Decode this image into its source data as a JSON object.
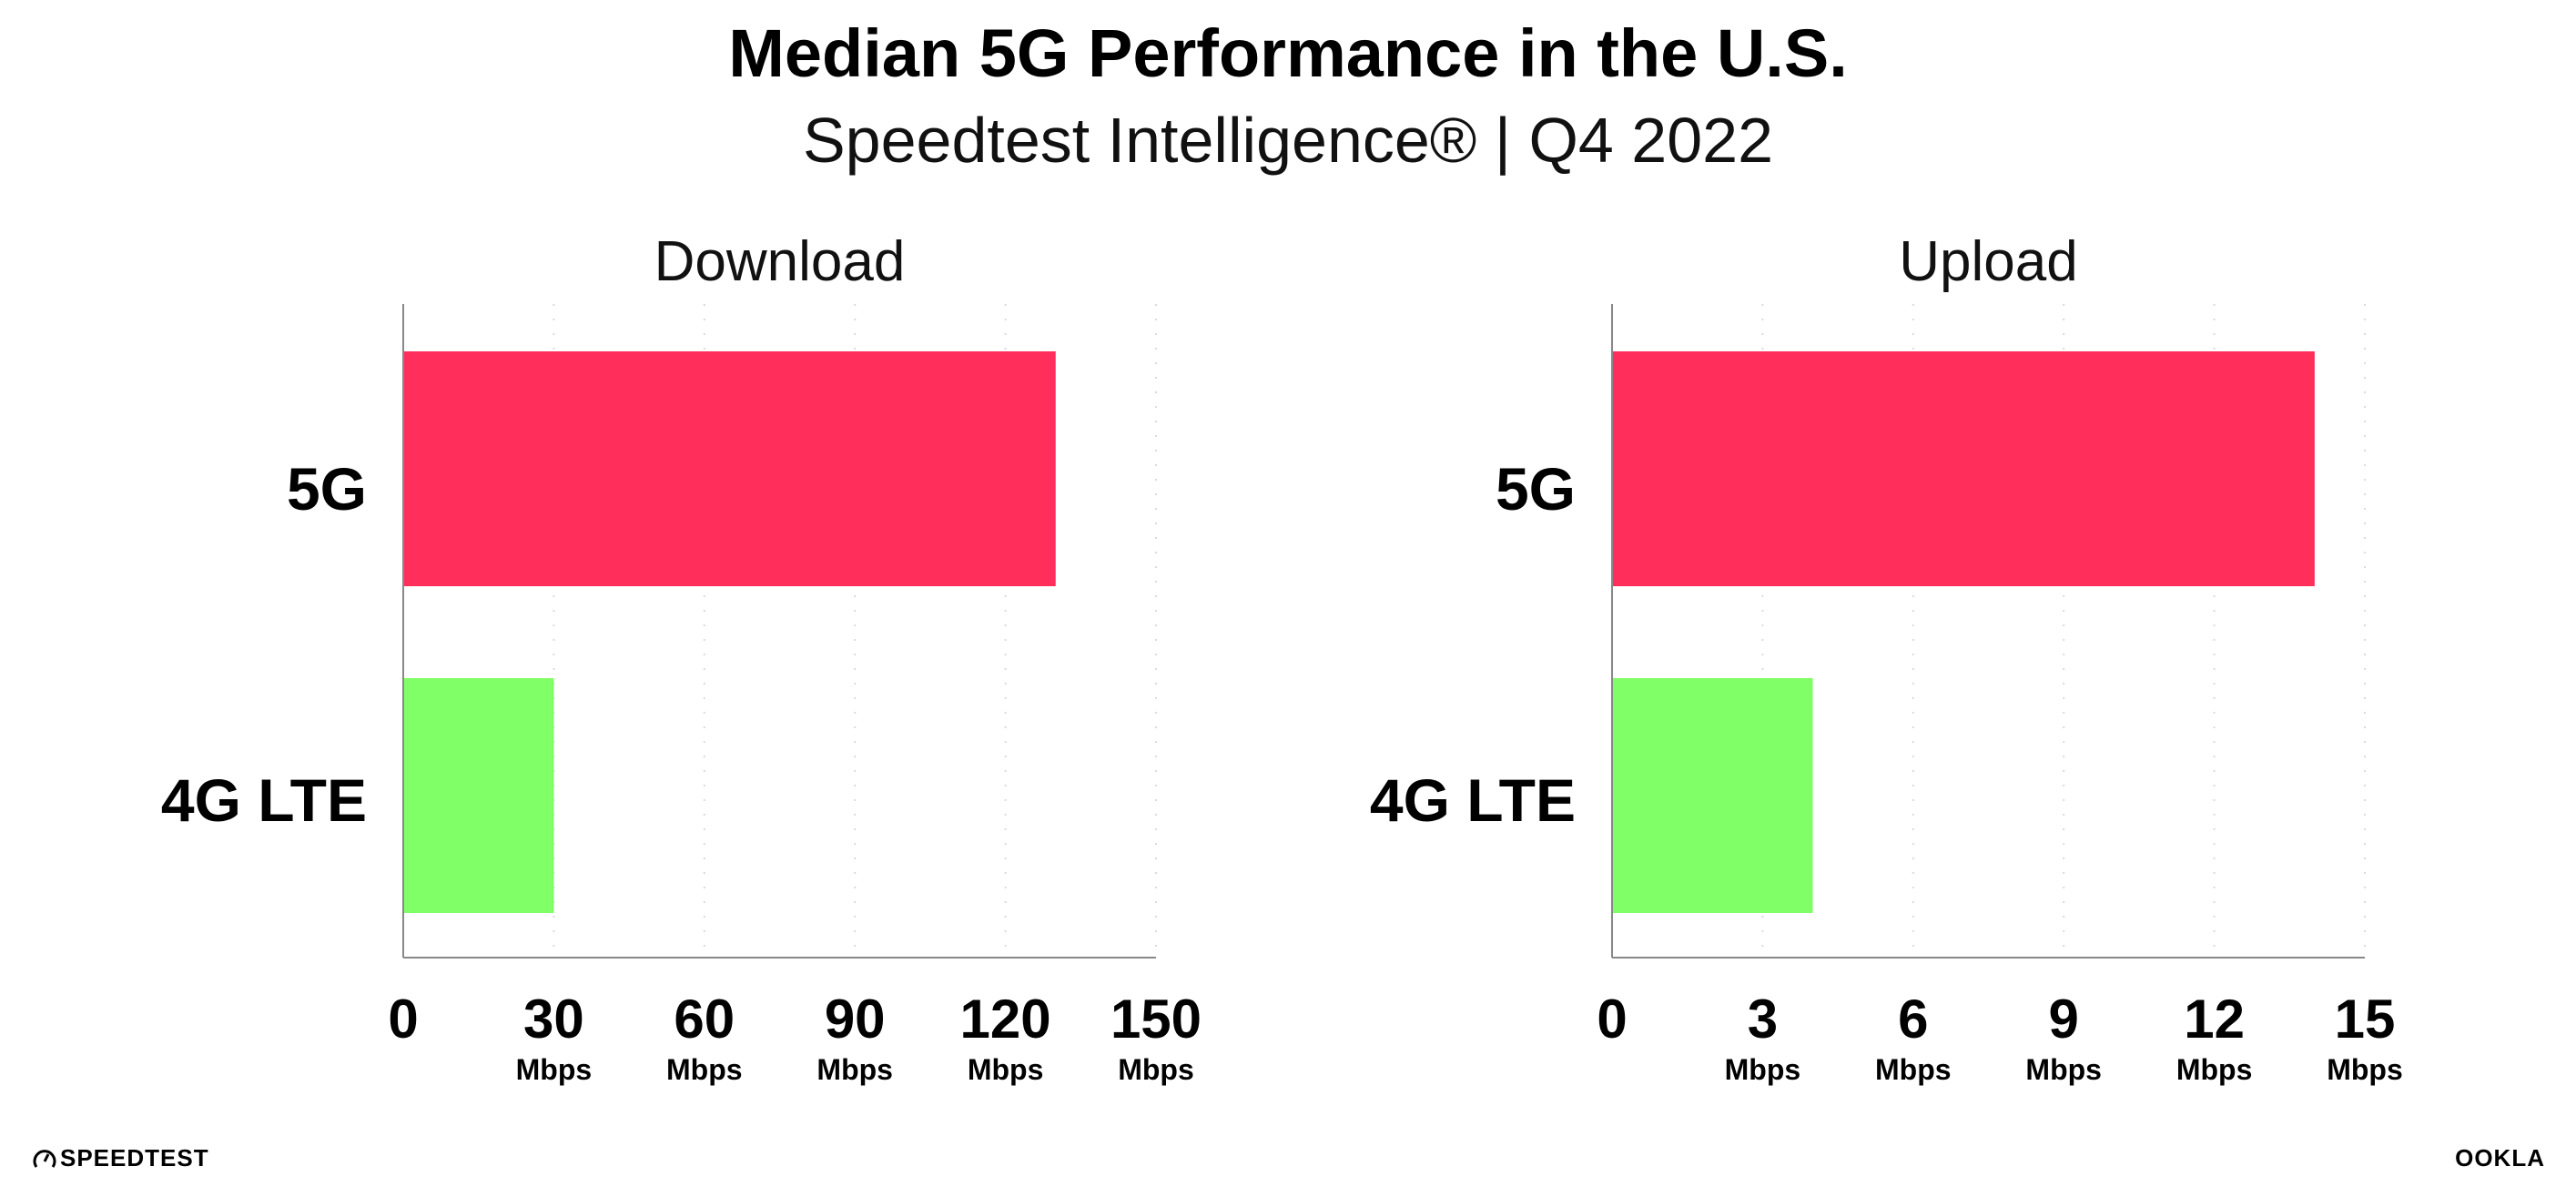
{
  "header": {
    "title": "Median 5G Performance in the U.S.",
    "subtitle": "Speedtest Intelligence® | Q4 2022"
  },
  "chart_data": [
    {
      "type": "bar",
      "orientation": "horizontal",
      "title": "Download",
      "categories": [
        "5G",
        "4G LTE"
      ],
      "values": [
        130.0,
        30.0
      ],
      "colors": [
        "#ff2e5b",
        "#80ff66"
      ],
      "xlim": [
        0,
        150
      ],
      "ticks": [
        0,
        30,
        60,
        90,
        120,
        150
      ],
      "tick_labels": [
        "0",
        "30",
        "60",
        "90",
        "120",
        "150"
      ],
      "unit_label": "Mbps",
      "grid": "vertical dotted"
    },
    {
      "type": "bar",
      "orientation": "horizontal",
      "title": "Upload",
      "categories": [
        "5G",
        "4G LTE"
      ],
      "values": [
        14.0,
        4.0
      ],
      "colors": [
        "#ff2e5b",
        "#80ff66"
      ],
      "xlim": [
        0,
        15
      ],
      "ticks": [
        0,
        3,
        6,
        9,
        12,
        15
      ],
      "tick_labels": [
        "0",
        "3",
        "6",
        "9",
        "12",
        "15"
      ],
      "unit_label": "Mbps",
      "grid": "vertical dotted"
    }
  ],
  "footer": {
    "left_logo": "SPEEDTEST",
    "right_logo": "OOKLA",
    "left_logo_icon": "speedometer-icon"
  }
}
